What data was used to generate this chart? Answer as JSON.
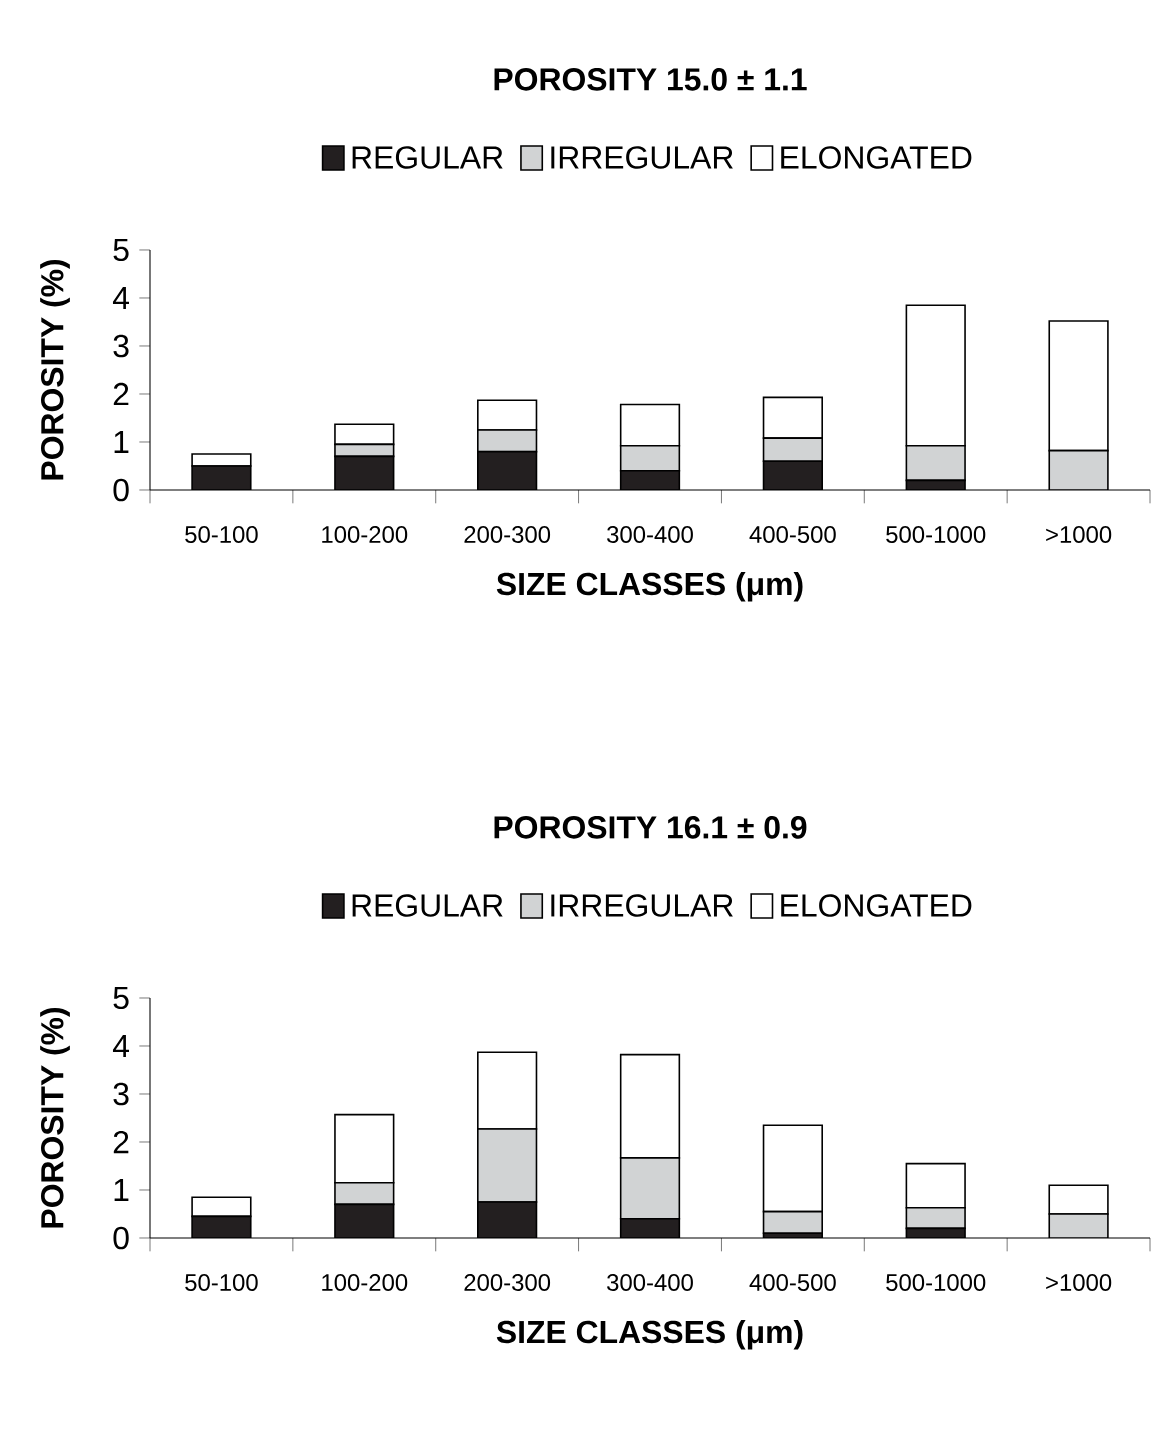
{
  "chart_data": [
    {
      "type": "bar",
      "stacked": true,
      "title": "POROSITY 15.0 ± 1.1",
      "xlabel": "SIZE CLASSES (μm)",
      "ylabel": "POROSITY (%)",
      "legend": "top",
      "ylim": [
        0,
        5
      ],
      "yticks": [
        0,
        1,
        2,
        3,
        4,
        5
      ],
      "categories": [
        "50-100",
        "100-200",
        "200-300",
        "300-400",
        "400-500",
        "500-1000",
        ">1000"
      ],
      "series": [
        {
          "name": "REGULAR",
          "color": "#231f20",
          "values": [
            0.5,
            0.7,
            0.8,
            0.4,
            0.6,
            0.2,
            0
          ]
        },
        {
          "name": "IRREGULAR",
          "color": "#d1d3d4",
          "values": [
            0,
            0.25,
            0.45,
            0.52,
            0.48,
            0.72,
            0.82
          ]
        },
        {
          "name": "ELONGATED",
          "color": "#ffffff",
          "values": [
            0.25,
            0.42,
            0.62,
            0.86,
            0.85,
            2.93,
            2.7
          ]
        }
      ]
    },
    {
      "type": "bar",
      "stacked": true,
      "title": "POROSITY 16.1 ± 0.9",
      "xlabel": "SIZE CLASSES (μm)",
      "ylabel": "POROSITY (%)",
      "legend": "top",
      "ylim": [
        0,
        5
      ],
      "yticks": [
        0,
        1,
        2,
        3,
        4,
        5
      ],
      "categories": [
        "50-100",
        "100-200",
        "200-300",
        "300-400",
        "400-500",
        "500-1000",
        ">1000"
      ],
      "series": [
        {
          "name": "REGULAR",
          "color": "#231f20",
          "values": [
            0.45,
            0.7,
            0.75,
            0.4,
            0.1,
            0.2,
            0
          ]
        },
        {
          "name": "IRREGULAR",
          "color": "#d1d3d4",
          "values": [
            0,
            0.45,
            1.52,
            1.27,
            0.45,
            0.43,
            0.5
          ]
        },
        {
          "name": "ELONGATED",
          "color": "#ffffff",
          "values": [
            0.4,
            1.42,
            1.6,
            2.15,
            1.8,
            0.92,
            0.6
          ]
        }
      ]
    }
  ]
}
